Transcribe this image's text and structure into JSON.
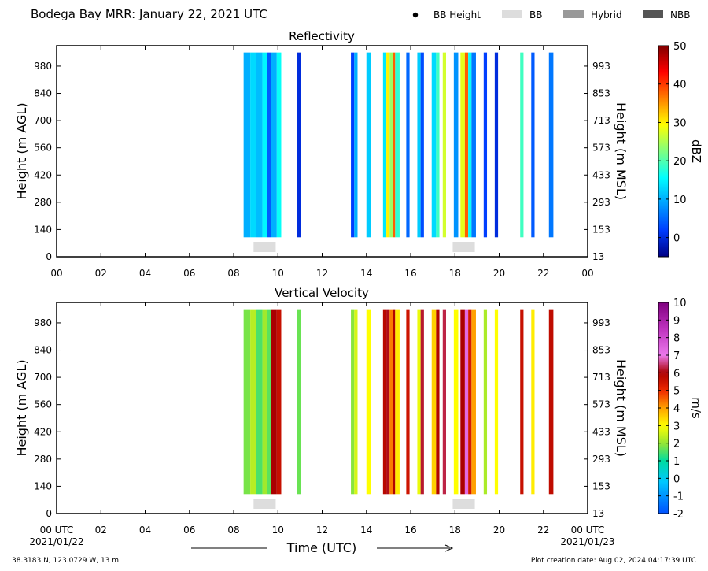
{
  "header": {
    "title": "Bodega Bay MRR:  January 22, 2021 UTC",
    "legend": [
      {
        "label": "BB Height",
        "kind": "dot",
        "color": "#000000"
      },
      {
        "label": "BB",
        "kind": "swatch",
        "color": "#dddddd"
      },
      {
        "label": "Hybrid",
        "kind": "swatch",
        "color": "#999999"
      },
      {
        "label": "NBB",
        "kind": "swatch",
        "color": "#555555"
      }
    ]
  },
  "footer": {
    "location": "38.3183 N, 123.0729 W, 13 m",
    "created": "Plot creation date: Aug 02, 2024 04:17:39 UTC",
    "date_start": "2021/01/22",
    "date_end": "2021/01/23"
  },
  "chart_data": [
    {
      "type": "heatmap",
      "title": "Reflectivity",
      "xlabel": "",
      "ylabel": "Height (m AGL)",
      "ylabel_right": "Height (m MSL)",
      "x_ticks": [
        "00",
        "02",
        "04",
        "06",
        "08",
        "10",
        "12",
        "14",
        "16",
        "18",
        "20",
        "22",
        "00"
      ],
      "xlim": [
        0,
        24
      ],
      "y_ticks": [
        0,
        140,
        280,
        420,
        560,
        700,
        840,
        980
      ],
      "y_ticks_right": [
        13,
        153,
        293,
        433,
        573,
        713,
        853,
        993
      ],
      "ylim": [
        0,
        1085
      ],
      "colorbar": {
        "label": "dBZ",
        "range": [
          -5,
          50
        ],
        "ticks": [
          0,
          10,
          20,
          30,
          40,
          50
        ]
      },
      "bright_band": [
        [
          8.9,
          9.9
        ],
        [
          17.9,
          18.9
        ]
      ],
      "data_top": 1050,
      "data_bottom": 100,
      "echo_columns": [
        {
          "t0": 8.45,
          "t1": 8.75,
          "value": 10
        },
        {
          "t0": 8.75,
          "t1": 9.0,
          "value": 13
        },
        {
          "t0": 9.0,
          "t1": 9.3,
          "value": 11
        },
        {
          "t0": 9.3,
          "t1": 9.5,
          "value": 15
        },
        {
          "t0": 9.5,
          "t1": 9.7,
          "value": 4
        },
        {
          "t0": 9.7,
          "t1": 9.95,
          "value": 10
        },
        {
          "t0": 9.95,
          "t1": 10.15,
          "value": 16
        },
        {
          "t0": 10.85,
          "t1": 11.05,
          "value": 0
        },
        {
          "t0": 13.3,
          "t1": 13.45,
          "value": 2
        },
        {
          "t0": 13.45,
          "t1": 13.6,
          "value": 10
        },
        {
          "t0": 14.0,
          "t1": 14.2,
          "value": 12
        },
        {
          "t0": 14.75,
          "t1": 14.9,
          "value": 14
        },
        {
          "t0": 14.9,
          "t1": 15.05,
          "value": 30
        },
        {
          "t0": 15.05,
          "t1": 15.2,
          "value": 24
        },
        {
          "t0": 15.2,
          "t1": 15.3,
          "value": 38
        },
        {
          "t0": 15.3,
          "t1": 15.5,
          "value": 18
        },
        {
          "t0": 15.8,
          "t1": 15.95,
          "value": 5
        },
        {
          "t0": 16.3,
          "t1": 16.45,
          "value": 12
        },
        {
          "t0": 16.45,
          "t1": 16.6,
          "value": 3
        },
        {
          "t0": 16.95,
          "t1": 17.15,
          "value": 13
        },
        {
          "t0": 17.15,
          "t1": 17.3,
          "value": 19
        },
        {
          "t0": 17.45,
          "t1": 17.6,
          "value": 27
        },
        {
          "t0": 17.95,
          "t1": 18.15,
          "value": 8
        },
        {
          "t0": 18.25,
          "t1": 18.45,
          "value": 28
        },
        {
          "t0": 18.45,
          "t1": 18.6,
          "value": 38
        },
        {
          "t0": 18.6,
          "t1": 18.75,
          "value": 16
        },
        {
          "t0": 18.75,
          "t1": 18.95,
          "value": 6
        },
        {
          "t0": 19.3,
          "t1": 19.45,
          "value": 2
        },
        {
          "t0": 19.8,
          "t1": 19.95,
          "value": 0
        },
        {
          "t0": 20.95,
          "t1": 21.1,
          "value": 19
        },
        {
          "t0": 21.45,
          "t1": 21.6,
          "value": 4
        },
        {
          "t0": 22.25,
          "t1": 22.45,
          "value": 6
        }
      ]
    },
    {
      "type": "heatmap",
      "title": "Vertical Velocity",
      "xlabel": "Time (UTC)",
      "ylabel": "Height (m AGL)",
      "ylabel_right": "Height (m MSL)",
      "x_ticks": [
        "00 UTC",
        "02",
        "04",
        "06",
        "08",
        "10",
        "12",
        "14",
        "16",
        "18",
        "20",
        "22",
        "00 UTC"
      ],
      "xlim": [
        0,
        24
      ],
      "y_ticks": [
        0,
        140,
        280,
        420,
        560,
        700,
        840,
        980
      ],
      "y_ticks_right": [
        13,
        153,
        293,
        433,
        573,
        713,
        853,
        993
      ],
      "ylim": [
        0,
        1085
      ],
      "colorbar": {
        "label": "m/s",
        "range": [
          -2,
          10
        ],
        "ticks": [
          -2,
          -1,
          0,
          1,
          2,
          3,
          4,
          5,
          6,
          7,
          8,
          9,
          10
        ]
      },
      "bright_band": [
        [
          8.9,
          9.9
        ],
        [
          17.9,
          18.9
        ]
      ],
      "data_top": 1050,
      "data_bottom": 100,
      "echo_columns": [
        {
          "t0": 8.45,
          "t1": 8.75,
          "value": 1.8
        },
        {
          "t0": 8.75,
          "t1": 9.0,
          "value": 2.3
        },
        {
          "t0": 9.0,
          "t1": 9.3,
          "value": 1.5
        },
        {
          "t0": 9.3,
          "t1": 9.5,
          "value": 2.1
        },
        {
          "t0": 9.5,
          "t1": 9.7,
          "value": 1.6
        },
        {
          "t0": 9.7,
          "t1": 9.95,
          "value": 6.0
        },
        {
          "t0": 9.95,
          "t1": 10.15,
          "value": 5.6
        },
        {
          "t0": 10.85,
          "t1": 11.05,
          "value": 1.7
        },
        {
          "t0": 13.3,
          "t1": 13.45,
          "value": 1.9
        },
        {
          "t0": 13.45,
          "t1": 13.6,
          "value": 2.6
        },
        {
          "t0": 14.0,
          "t1": 14.2,
          "value": 3.0
        },
        {
          "t0": 14.75,
          "t1": 14.9,
          "value": 5.8
        },
        {
          "t0": 14.9,
          "t1": 15.05,
          "value": 6.1
        },
        {
          "t0": 15.05,
          "t1": 15.2,
          "value": 4.3
        },
        {
          "t0": 15.2,
          "t1": 15.3,
          "value": 5.9
        },
        {
          "t0": 15.3,
          "t1": 15.5,
          "value": 3.2
        },
        {
          "t0": 15.8,
          "t1": 15.95,
          "value": 5.5
        },
        {
          "t0": 16.3,
          "t1": 16.45,
          "value": 2.8
        },
        {
          "t0": 16.45,
          "t1": 16.6,
          "value": 6.2
        },
        {
          "t0": 16.95,
          "t1": 17.15,
          "value": 3.5
        },
        {
          "t0": 17.15,
          "t1": 17.3,
          "value": 5.9
        },
        {
          "t0": 17.45,
          "t1": 17.6,
          "value": 6.3
        },
        {
          "t0": 17.95,
          "t1": 18.15,
          "value": 3.0
        },
        {
          "t0": 18.25,
          "t1": 18.45,
          "value": 6.0
        },
        {
          "t0": 18.45,
          "t1": 18.6,
          "value": 7.3
        },
        {
          "t0": 18.6,
          "t1": 18.75,
          "value": 5.4
        },
        {
          "t0": 18.75,
          "t1": 18.95,
          "value": 4.0
        },
        {
          "t0": 19.3,
          "t1": 19.45,
          "value": 2.2
        },
        {
          "t0": 19.8,
          "t1": 19.95,
          "value": 3.0
        },
        {
          "t0": 20.95,
          "t1": 21.1,
          "value": 5.6
        },
        {
          "t0": 21.45,
          "t1": 21.6,
          "value": 3.2
        },
        {
          "t0": 22.25,
          "t1": 22.45,
          "value": 5.7
        }
      ]
    }
  ]
}
